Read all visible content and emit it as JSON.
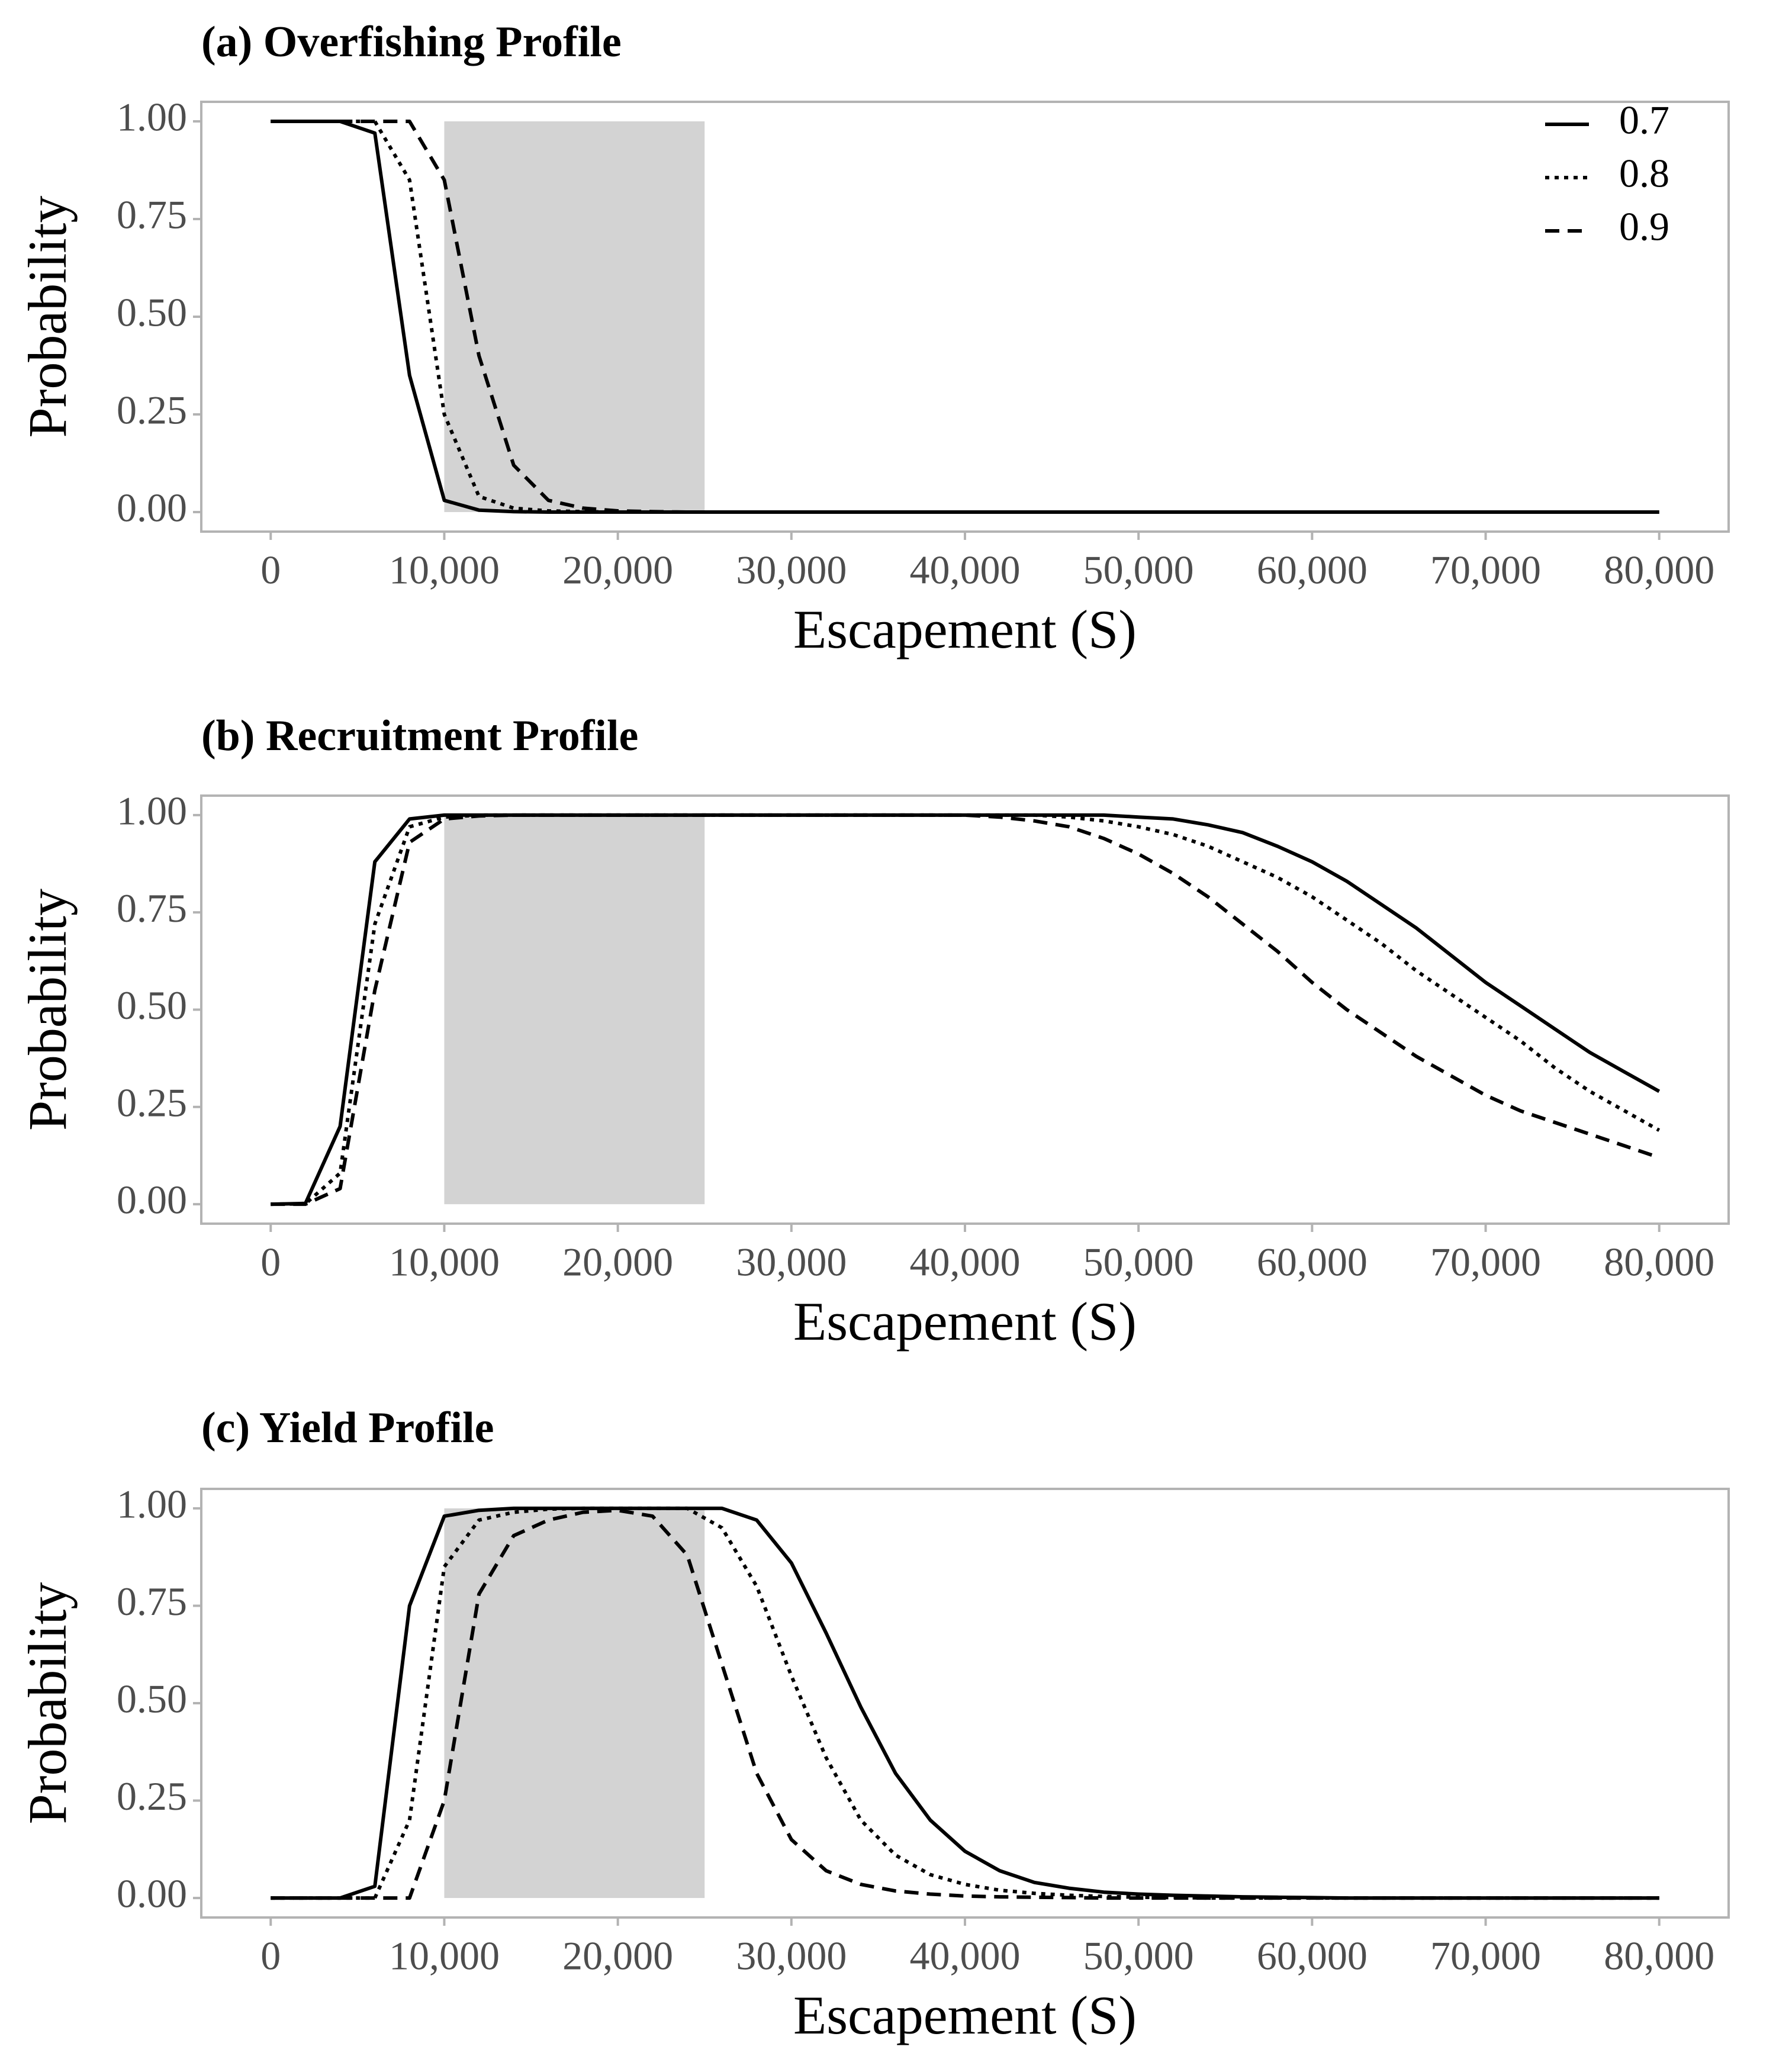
{
  "chart_data": [
    {
      "type": "line",
      "title": "(a) Overfishing Profile",
      "xlabel": "Escapement (S)",
      "ylabel": "Probability",
      "xlim": [
        -4000,
        84000
      ],
      "ylim": [
        -0.05,
        1.05
      ],
      "xticks": [
        0,
        {
          "value": 10000,
          "label": "10,000"
        },
        {
          "value": 20000,
          "label": "20,000"
        },
        {
          "value": 30000,
          "label": "30,000"
        },
        {
          "value": 40000,
          "label": "40,000"
        },
        {
          "value": 50000,
          "label": "50,000"
        },
        {
          "value": 60000,
          "label": "60,000"
        },
        {
          "value": 70000,
          "label": "70,000"
        },
        {
          "value": 80000,
          "label": "80,000"
        }
      ],
      "yticks": [
        {
          "value": 0,
          "label": "0.00"
        },
        {
          "value": 0.25,
          "label": "0.25"
        },
        {
          "value": 0.5,
          "label": "0.50"
        },
        {
          "value": 0.75,
          "label": "0.75"
        },
        {
          "value": 1,
          "label": "1.00"
        }
      ],
      "shade": {
        "x": [
          10000,
          25000
        ],
        "y": [
          0,
          1
        ],
        "color": "#d3d3d3"
      },
      "legend": "top-right",
      "x": [
        0,
        2000,
        4000,
        6000,
        8000,
        10000,
        12000,
        14000,
        16000,
        18000,
        20000,
        22000,
        24000,
        26000,
        28000,
        30000,
        32000,
        34000,
        36000,
        38000,
        40000,
        42000,
        44000,
        46000,
        48000,
        50000,
        52000,
        54000,
        56000,
        58000,
        60000,
        62000,
        64000,
        66000,
        68000,
        70000,
        72000,
        74000,
        76000,
        78000,
        80000
      ],
      "series": [
        {
          "name": "0.7",
          "color": "#000000",
          "dash": "solid",
          "values": [
            1,
            1,
            1,
            0.97,
            0.35,
            0.03,
            0.005,
            0.001,
            0,
            0,
            0,
            0,
            0,
            0,
            0,
            0,
            0,
            0,
            0,
            0,
            0,
            0,
            0,
            0,
            0,
            0,
            0,
            0,
            0,
            0,
            0,
            0,
            0,
            0,
            0,
            0,
            0,
            0,
            0,
            0,
            0
          ]
        },
        {
          "name": "0.8",
          "color": "#000000",
          "dash": "dotted",
          "values": [
            1,
            1,
            1,
            1,
            0.85,
            0.25,
            0.04,
            0.01,
            0.003,
            0.001,
            0,
            0,
            0,
            0,
            0,
            0,
            0,
            0,
            0,
            0,
            0,
            0,
            0,
            0,
            0,
            0,
            0,
            0,
            0,
            0,
            0,
            0,
            0,
            0,
            0,
            0,
            0,
            0,
            0,
            0,
            0
          ]
        },
        {
          "name": "0.9",
          "color": "#000000",
          "dash": "dashed",
          "values": [
            1,
            1,
            1,
            1,
            1,
            0.85,
            0.4,
            0.12,
            0.03,
            0.01,
            0.003,
            0.001,
            0,
            0,
            0,
            0,
            0,
            0,
            0,
            0,
            0,
            0,
            0,
            0,
            0,
            0,
            0,
            0,
            0,
            0,
            0,
            0,
            0,
            0,
            0,
            0,
            0,
            0,
            0,
            0,
            0
          ]
        }
      ]
    },
    {
      "type": "line",
      "title": "(b) Recruitment Profile",
      "xlabel": "Escapement (S)",
      "ylabel": "Probability",
      "xlim": [
        -4000,
        84000
      ],
      "ylim": [
        -0.05,
        1.05
      ],
      "xticks": [
        0,
        {
          "value": 10000,
          "label": "10,000"
        },
        {
          "value": 20000,
          "label": "20,000"
        },
        {
          "value": 30000,
          "label": "30,000"
        },
        {
          "value": 40000,
          "label": "40,000"
        },
        {
          "value": 50000,
          "label": "50,000"
        },
        {
          "value": 60000,
          "label": "60,000"
        },
        {
          "value": 70000,
          "label": "70,000"
        },
        {
          "value": 80000,
          "label": "80,000"
        }
      ],
      "yticks": [
        {
          "value": 0,
          "label": "0.00"
        },
        {
          "value": 0.25,
          "label": "0.25"
        },
        {
          "value": 0.5,
          "label": "0.50"
        },
        {
          "value": 0.75,
          "label": "0.75"
        },
        {
          "value": 1,
          "label": "1.00"
        }
      ],
      "shade": {
        "x": [
          10000,
          25000
        ],
        "y": [
          0,
          1
        ],
        "color": "#d3d3d3"
      },
      "x": [
        0,
        2000,
        4000,
        6000,
        8000,
        10000,
        12000,
        14000,
        16000,
        18000,
        20000,
        22000,
        24000,
        26000,
        28000,
        30000,
        32000,
        34000,
        36000,
        38000,
        40000,
        42000,
        44000,
        46000,
        48000,
        50000,
        52000,
        54000,
        56000,
        58000,
        60000,
        62000,
        64000,
        66000,
        68000,
        70000,
        72000,
        74000,
        76000,
        78000,
        80000
      ],
      "series": [
        {
          "color": "#000000",
          "dash": "solid",
          "values": [
            0,
            0.002,
            0.2,
            0.88,
            0.99,
            1,
            1,
            1,
            1,
            1,
            1,
            1,
            1,
            1,
            1,
            1,
            1,
            1,
            1,
            1,
            1,
            1,
            1,
            1,
            1,
            0.995,
            0.99,
            0.975,
            0.955,
            0.92,
            0.88,
            0.83,
            0.77,
            0.71,
            0.64,
            0.57,
            0.51,
            0.45,
            0.39,
            0.34,
            0.29
          ]
        },
        {
          "color": "#000000",
          "dash": "dotted",
          "values": [
            0,
            0.001,
            0.08,
            0.72,
            0.97,
            0.995,
            1,
            1,
            1,
            1,
            1,
            1,
            1,
            1,
            1,
            1,
            1,
            1,
            1,
            1,
            1,
            1,
            1,
            0.995,
            0.985,
            0.97,
            0.95,
            0.92,
            0.88,
            0.84,
            0.79,
            0.73,
            0.67,
            0.6,
            0.54,
            0.48,
            0.42,
            0.35,
            0.29,
            0.24,
            0.19
          ]
        },
        {
          "color": "#000000",
          "dash": "dashed",
          "values": [
            0,
            0,
            0.04,
            0.55,
            0.93,
            0.99,
            0.998,
            1,
            1,
            1,
            1,
            1,
            1,
            1,
            1,
            1,
            1,
            1,
            1,
            1,
            1,
            0.995,
            0.985,
            0.97,
            0.94,
            0.9,
            0.85,
            0.79,
            0.72,
            0.65,
            0.57,
            0.5,
            0.44,
            0.38,
            0.33,
            0.28,
            0.24,
            0.21,
            0.18,
            0.15,
            0.12
          ]
        }
      ]
    },
    {
      "type": "line",
      "title": "(c) Yield Profile",
      "xlabel": "Escapement (S)",
      "ylabel": "Probability",
      "xlim": [
        -4000,
        84000
      ],
      "ylim": [
        -0.05,
        1.05
      ],
      "xticks": [
        0,
        {
          "value": 10000,
          "label": "10,000"
        },
        {
          "value": 20000,
          "label": "20,000"
        },
        {
          "value": 30000,
          "label": "30,000"
        },
        {
          "value": 40000,
          "label": "40,000"
        },
        {
          "value": 50000,
          "label": "50,000"
        },
        {
          "value": 60000,
          "label": "60,000"
        },
        {
          "value": 70000,
          "label": "70,000"
        },
        {
          "value": 80000,
          "label": "80,000"
        }
      ],
      "yticks": [
        {
          "value": 0,
          "label": "0.00"
        },
        {
          "value": 0.25,
          "label": "0.25"
        },
        {
          "value": 0.5,
          "label": "0.50"
        },
        {
          "value": 0.75,
          "label": "0.75"
        },
        {
          "value": 1,
          "label": "1.00"
        }
      ],
      "shade": {
        "x": [
          10000,
          25000
        ],
        "y": [
          0,
          1
        ],
        "color": "#d3d3d3"
      },
      "x": [
        0,
        2000,
        4000,
        6000,
        8000,
        10000,
        12000,
        14000,
        16000,
        18000,
        20000,
        22000,
        24000,
        26000,
        28000,
        30000,
        32000,
        34000,
        36000,
        38000,
        40000,
        42000,
        44000,
        46000,
        48000,
        50000,
        52000,
        54000,
        56000,
        58000,
        60000,
        62000,
        64000,
        66000,
        68000,
        70000,
        72000,
        74000,
        76000,
        78000,
        80000
      ],
      "series": [
        {
          "color": "#000000",
          "dash": "solid",
          "values": [
            0,
            0,
            0,
            0.03,
            0.75,
            0.98,
            0.995,
            1,
            1,
            1,
            1,
            1,
            1,
            1,
            0.97,
            0.86,
            0.68,
            0.49,
            0.32,
            0.2,
            0.12,
            0.07,
            0.04,
            0.025,
            0.015,
            0.01,
            0.007,
            0.005,
            0.003,
            0.002,
            0.001,
            0,
            0,
            0,
            0,
            0,
            0,
            0,
            0,
            0,
            0
          ]
        },
        {
          "color": "#000000",
          "dash": "dotted",
          "values": [
            0,
            0,
            0,
            0,
            0.2,
            0.85,
            0.97,
            0.99,
            0.998,
            1,
            1,
            1,
            1,
            0.95,
            0.8,
            0.57,
            0.36,
            0.2,
            0.11,
            0.06,
            0.035,
            0.02,
            0.012,
            0.007,
            0.004,
            0.002,
            0.001,
            0,
            0,
            0,
            0,
            0,
            0,
            0,
            0,
            0,
            0,
            0,
            0,
            0,
            0
          ]
        },
        {
          "color": "#000000",
          "dash": "dashed",
          "values": [
            0,
            0,
            0,
            0,
            0,
            0.25,
            0.78,
            0.93,
            0.97,
            0.99,
            0.995,
            0.98,
            0.88,
            0.6,
            0.32,
            0.15,
            0.07,
            0.035,
            0.018,
            0.01,
            0.005,
            0.003,
            0.002,
            0.001,
            0,
            0,
            0,
            0,
            0,
            0,
            0,
            0,
            0,
            0,
            0,
            0,
            0,
            0,
            0,
            0,
            0
          ]
        }
      ]
    }
  ]
}
